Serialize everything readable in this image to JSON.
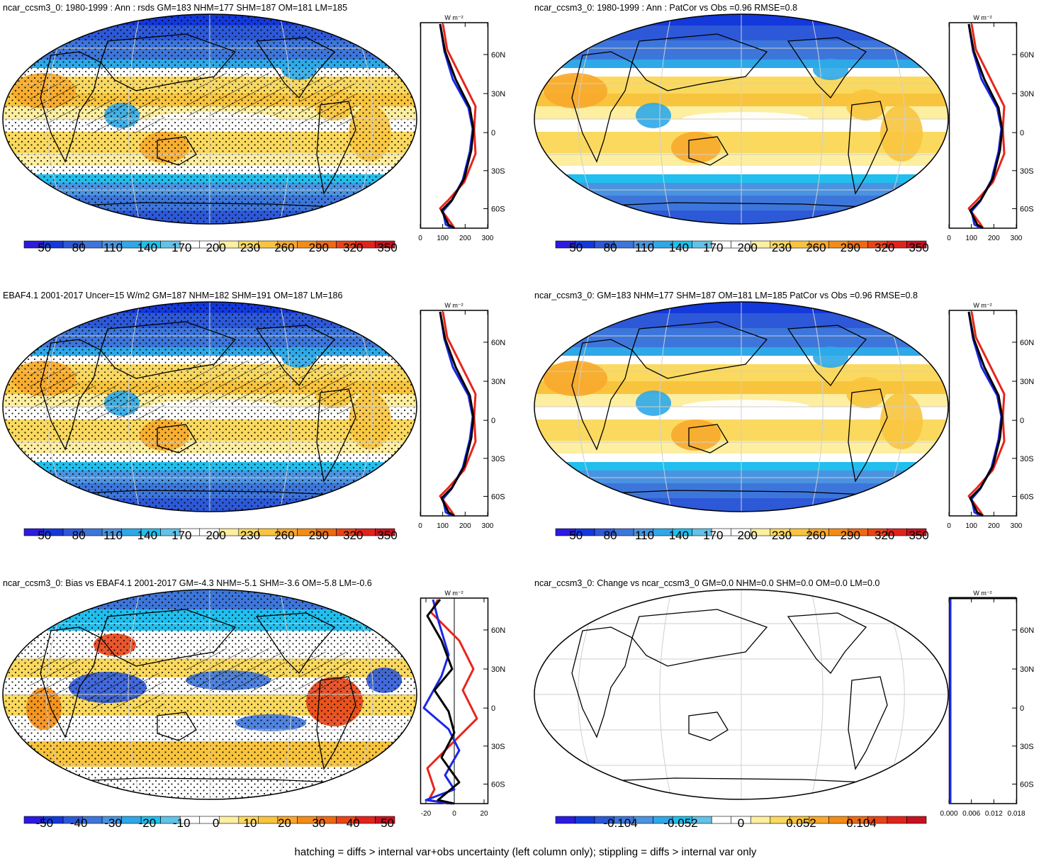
{
  "footer": "hatching = diffs > internal var+obs uncertainty (left column only); stippling = diffs > internal var only",
  "colors": {
    "scale": [
      "#2c1ae0",
      "#1338dc",
      "#2d59d8",
      "#3d76db",
      "#4b93e0",
      "#2ea8e8",
      "#20bfee",
      "#62c2e8",
      "#ffffff",
      "#ffffff",
      "#fdeea0",
      "#fad95e",
      "#f8c43e",
      "#f7a82b",
      "#f38c17",
      "#ee6a12",
      "#e84416",
      "#e1231d",
      "#c8111f"
    ],
    "model": "#e8241c",
    "obs": "#1a28e6",
    "mean": "#000000"
  },
  "zonal_unit": "W m⁻²",
  "lat_ticks": [
    "60N",
    "30N",
    "0",
    "30S",
    "60S"
  ],
  "panels": [
    {
      "title": "ncar_ccsm3_0: 1980-1999 : Ann : rsds GM=183 NHM=177 SHM=187 OM=181 LM=185",
      "cbar_labels": [
        "50",
        "80",
        "110",
        "140",
        "170",
        "200",
        "230",
        "260",
        "290",
        "320",
        "350"
      ],
      "zonal_ticks": [
        "0",
        "100",
        "200",
        "300"
      ]
    },
    {
      "title": "ncar_ccsm3_0: 1980-1999 : Ann : PatCor vs Obs =0.96 RMSE=0.8",
      "cbar_labels": [
        "50",
        "80",
        "110",
        "140",
        "170",
        "200",
        "230",
        "260",
        "290",
        "320",
        "350"
      ],
      "zonal_ticks": [
        "0",
        "100",
        "200",
        "300"
      ]
    },
    {
      "title": "EBAF4.1 2001-2017 Uncer=15 W/m2 GM=187 NHM=182 SHM=191 OM=187 LM=186",
      "cbar_labels": [
        "50",
        "80",
        "110",
        "140",
        "170",
        "200",
        "230",
        "260",
        "290",
        "320",
        "350"
      ],
      "zonal_ticks": [
        "0",
        "100",
        "200",
        "300"
      ]
    },
    {
      "title": "ncar_ccsm3_0: GM=183 NHM=177 SHM=187 OM=181 LM=185 PatCor vs Obs =0.96 RMSE=0.8",
      "cbar_labels": [
        "50",
        "80",
        "110",
        "140",
        "170",
        "200",
        "230",
        "260",
        "290",
        "320",
        "350"
      ],
      "zonal_ticks": [
        "0",
        "100",
        "200",
        "300"
      ]
    },
    {
      "title": "ncar_ccsm3_0: Bias vs EBAF4.1 2001-2017 GM=-4.3 NHM=-5.1 SHM=-3.6 OM=-5.8 LM=-0.6",
      "cbar_labels": [
        "-50",
        "-40",
        "-30",
        "-20",
        "-10",
        "0",
        "10",
        "20",
        "30",
        "40",
        "50"
      ],
      "zonal_ticks": [
        "-20",
        "0",
        "20"
      ]
    },
    {
      "title": "ncar_ccsm3_0: Change vs ncar_ccsm3_0 GM=0.0 NHM=0.0 SHM=0.0 OM=0.0 LM=0.0",
      "cbar_labels": [
        "-0.104",
        "-0.052",
        "0",
        "0.052",
        "0.104"
      ],
      "zonal_ticks": [
        "0.000",
        "0.006",
        "0.012",
        "0.018"
      ]
    }
  ]
}
